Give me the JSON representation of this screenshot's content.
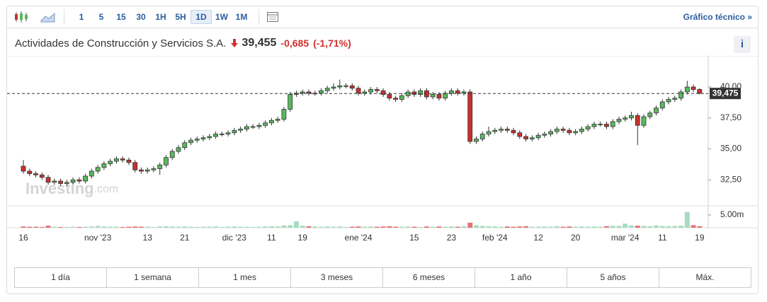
{
  "toolbar": {
    "intervals": [
      "1",
      "5",
      "15",
      "30",
      "1H",
      "5H",
      "1D",
      "1W",
      "1M"
    ],
    "active_interval": "1D",
    "link": "Gráfico técnico »"
  },
  "header": {
    "name": "Actividades de Construcción y Servicios S.A.",
    "price": "39,455",
    "change": "-0,685",
    "change_percent": "(-1,71%)",
    "info": "i"
  },
  "chart_data": {
    "type": "candlestick",
    "categories": [
      "16",
      null,
      null,
      null,
      null,
      null,
      null,
      null,
      null,
      null,
      null,
      null,
      "nov '23",
      null,
      null,
      null,
      null,
      null,
      null,
      null,
      "13",
      null,
      null,
      null,
      null,
      null,
      "21",
      null,
      null,
      null,
      null,
      null,
      null,
      null,
      "dic '23",
      null,
      null,
      null,
      null,
      null,
      "11",
      null,
      null,
      null,
      null,
      "19",
      null,
      null,
      null,
      null,
      null,
      null,
      null,
      null,
      "ene '24",
      null,
      null,
      null,
      null,
      null,
      null,
      null,
      null,
      "15",
      null,
      null,
      null,
      null,
      null,
      "23",
      null,
      null,
      null,
      null,
      null,
      null,
      "feb '24",
      null,
      null,
      null,
      null,
      null,
      null,
      "12",
      null,
      null,
      null,
      null,
      null,
      "20",
      null,
      null,
      null,
      null,
      null,
      null,
      null,
      "mar '24",
      null,
      null,
      null,
      null,
      null,
      "11",
      null,
      null,
      null,
      null,
      null,
      "19"
    ],
    "open": [
      33.6,
      33.2,
      33.0,
      32.9,
      32.7,
      32.3,
      32.4,
      32.2,
      32.3,
      32.5,
      32.4,
      32.8,
      33.2,
      33.5,
      33.8,
      34.0,
      34.2,
      34.1,
      33.9,
      33.3,
      33.2,
      33.3,
      33.4,
      33.7,
      34.3,
      34.8,
      35.1,
      35.5,
      35.7,
      35.8,
      35.9,
      36.0,
      36.2,
      36.2,
      36.3,
      36.5,
      36.6,
      36.8,
      36.8,
      36.9,
      37.1,
      37.3,
      37.4,
      38.2,
      39.4,
      39.5,
      39.6,
      39.5,
      39.5,
      39.7,
      39.9,
      40.0,
      40.1,
      40.1,
      39.9,
      39.5,
      39.6,
      39.8,
      39.7,
      39.4,
      39.1,
      39.0,
      39.3,
      39.6,
      39.4,
      39.7,
      39.2,
      39.4,
      39.1,
      39.5,
      39.7,
      39.5,
      39.6,
      35.6,
      35.8,
      36.2,
      36.4,
      36.5,
      36.6,
      36.5,
      36.3,
      36.0,
      35.8,
      35.9,
      36.1,
      36.2,
      36.4,
      36.6,
      36.5,
      36.3,
      36.4,
      36.6,
      36.8,
      37.0,
      37.0,
      36.8,
      37.2,
      37.4,
      37.5,
      37.7,
      36.9,
      37.6,
      37.9,
      38.3,
      38.8,
      39.0,
      39.1,
      39.6,
      40.0,
      39.8
    ],
    "high": [
      34.1,
      33.4,
      33.2,
      33.1,
      32.9,
      32.6,
      32.6,
      32.5,
      32.7,
      32.7,
      33.0,
      33.4,
      33.7,
      34.0,
      34.2,
      34.4,
      34.4,
      34.3,
      34.1,
      33.5,
      33.5,
      33.6,
      33.9,
      34.5,
      35.0,
      35.3,
      35.7,
      35.9,
      36.0,
      36.1,
      36.2,
      36.4,
      36.4,
      36.5,
      36.7,
      36.8,
      37.0,
      37.0,
      37.1,
      37.3,
      37.5,
      37.6,
      38.4,
      39.6,
      39.7,
      39.8,
      39.8,
      39.7,
      39.9,
      40.1,
      40.3,
      40.6,
      40.3,
      40.3,
      40.1,
      39.8,
      40.0,
      40.0,
      39.9,
      39.6,
      39.3,
      39.5,
      39.8,
      39.8,
      39.9,
      39.9,
      39.6,
      39.6,
      39.7,
      39.9,
      39.9,
      39.8,
      39.8,
      36.0,
      36.4,
      36.8,
      36.7,
      36.8,
      36.8,
      36.7,
      36.5,
      36.2,
      36.1,
      36.3,
      36.4,
      36.6,
      36.8,
      36.8,
      36.7,
      36.6,
      36.8,
      37.0,
      37.2,
      37.2,
      37.2,
      37.4,
      37.6,
      37.7,
      38.0,
      37.9,
      37.8,
      38.1,
      38.5,
      39.0,
      39.2,
      39.3,
      39.8,
      40.5,
      40.2,
      39.9
    ],
    "low": [
      33.0,
      32.8,
      32.7,
      32.5,
      32.1,
      32.1,
      32.0,
      32.0,
      32.1,
      32.2,
      32.2,
      32.6,
      33.0,
      33.3,
      33.6,
      33.8,
      33.9,
      33.7,
      33.1,
      33.0,
      33.0,
      33.1,
      32.9,
      33.5,
      34.1,
      34.6,
      34.9,
      35.3,
      35.5,
      35.6,
      35.7,
      35.8,
      36.0,
      36.0,
      36.1,
      36.3,
      36.4,
      36.6,
      36.6,
      36.7,
      36.9,
      37.1,
      37.2,
      38.0,
      39.2,
      39.3,
      39.3,
      39.3,
      39.3,
      39.5,
      39.7,
      39.8,
      39.9,
      39.7,
      39.3,
      39.3,
      39.4,
      39.5,
      39.2,
      38.9,
      38.8,
      38.8,
      39.1,
      39.2,
      39.2,
      39.0,
      39.0,
      38.9,
      38.9,
      39.3,
      39.3,
      39.3,
      35.4,
      35.4,
      35.6,
      36.0,
      36.2,
      36.3,
      36.3,
      36.1,
      35.8,
      35.6,
      35.6,
      35.7,
      35.9,
      36.0,
      36.2,
      36.3,
      36.1,
      36.1,
      36.2,
      36.4,
      36.6,
      36.8,
      36.6,
      36.6,
      37.0,
      37.2,
      37.3,
      35.3,
      36.7,
      37.4,
      37.7,
      38.1,
      38.6,
      38.8,
      38.9,
      39.4,
      39.6,
      39.4
    ],
    "close": [
      33.2,
      33.0,
      32.9,
      32.7,
      32.3,
      32.4,
      32.2,
      32.3,
      32.5,
      32.4,
      32.8,
      33.2,
      33.5,
      33.8,
      34.0,
      34.2,
      34.1,
      33.9,
      33.3,
      33.2,
      33.3,
      33.4,
      33.7,
      34.3,
      34.8,
      35.1,
      35.5,
      35.7,
      35.8,
      35.9,
      36.0,
      36.2,
      36.2,
      36.3,
      36.5,
      36.6,
      36.8,
      36.8,
      36.9,
      37.1,
      37.3,
      37.4,
      38.2,
      39.4,
      39.5,
      39.6,
      39.5,
      39.5,
      39.7,
      39.9,
      40.0,
      40.1,
      40.1,
      39.9,
      39.5,
      39.6,
      39.8,
      39.7,
      39.4,
      39.1,
      39.0,
      39.3,
      39.6,
      39.4,
      39.7,
      39.2,
      39.4,
      39.1,
      39.5,
      39.7,
      39.5,
      39.6,
      35.6,
      35.8,
      36.2,
      36.4,
      36.5,
      36.6,
      36.5,
      36.3,
      36.0,
      35.8,
      35.9,
      36.1,
      36.2,
      36.4,
      36.6,
      36.5,
      36.3,
      36.4,
      36.6,
      36.8,
      37.0,
      37.0,
      36.8,
      37.2,
      37.4,
      37.5,
      37.7,
      36.9,
      37.6,
      37.9,
      38.3,
      38.8,
      39.0,
      39.1,
      39.6,
      40.0,
      39.8,
      39.5
    ],
    "up_color": "#58b95c",
    "down_color": "#c9302c",
    "ylim": [
      30.4,
      42.4
    ],
    "yticks": [
      {
        "value": 32.5,
        "label": "32,50"
      },
      {
        "value": 35,
        "label": "35,00"
      },
      {
        "value": 37.5,
        "label": "37,50"
      },
      {
        "value": 40,
        "label": "40,00"
      }
    ],
    "last_price": {
      "value": 39.475,
      "label": "39,475"
    },
    "watermark": {
      "brand": "Investing",
      "suffix": ".com"
    },
    "volume": {
      "values": [
        0.5,
        0.4,
        0.4,
        0.3,
        0.8,
        0.4,
        0.3,
        0.3,
        0.4,
        0.3,
        0.4,
        0.5,
        0.7,
        0.5,
        0.4,
        0.4,
        0.3,
        0.4,
        0.5,
        0.4,
        0.4,
        0.3,
        0.5,
        0.6,
        0.5,
        0.4,
        0.5,
        0.4,
        0.3,
        0.4,
        0.4,
        0.5,
        0.3,
        0.4,
        0.5,
        0.4,
        0.4,
        0.3,
        0.4,
        0.5,
        0.6,
        0.5,
        0.9,
        1.0,
        2.5,
        0.8,
        0.6,
        0.5,
        0.4,
        0.5,
        0.4,
        0.5,
        0.3,
        0.4,
        0.5,
        0.4,
        0.5,
        0.4,
        0.5,
        0.6,
        0.4,
        0.4,
        0.5,
        0.4,
        0.3,
        0.5,
        0.4,
        0.5,
        0.4,
        0.5,
        0.4,
        0.6,
        2.0,
        1.0,
        0.7,
        0.6,
        0.5,
        0.4,
        0.5,
        0.4,
        0.5,
        0.6,
        0.4,
        0.4,
        0.5,
        0.4,
        0.6,
        0.4,
        0.5,
        0.4,
        0.5,
        0.4,
        0.5,
        0.4,
        0.6,
        0.8,
        0.7,
        1.6,
        0.9,
        0.8,
        0.7,
        0.6,
        0.9,
        0.7,
        0.6,
        0.7,
        0.8,
        6.2,
        1.0,
        0.6
      ],
      "up_color": "#a8dcc0",
      "down_color": "#e57373",
      "ylim": [
        0,
        8.3
      ],
      "yticks": [
        {
          "value": 5,
          "label": "5.00m"
        }
      ]
    }
  },
  "ranges": [
    "1 día",
    "1 semana",
    "1 mes",
    "3 meses",
    "6 meses",
    "1 año",
    "5 años",
    "Máx."
  ]
}
